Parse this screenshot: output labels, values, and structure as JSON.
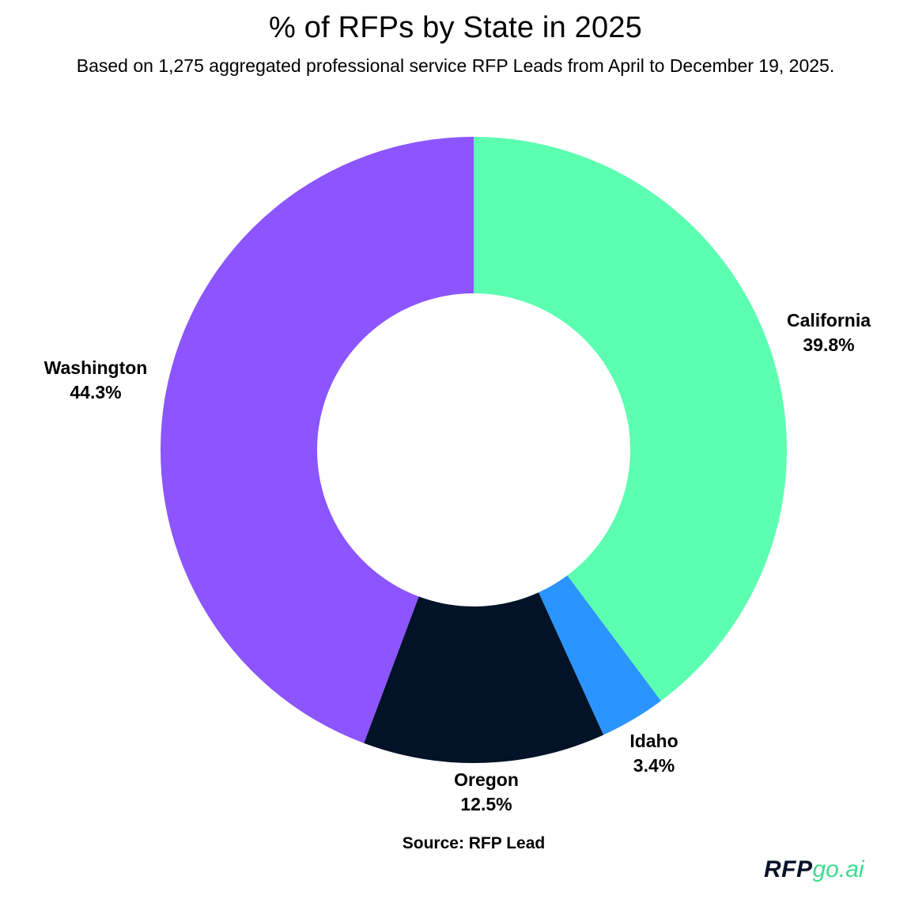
{
  "header": {
    "title": "% of RFPs by State in 2025",
    "subtitle": "Based on 1,275 aggregated professional service RFP Leads from April to December 19, 2025."
  },
  "footer": {
    "source": "Source: RFP Lead",
    "logo_primary": "RFP",
    "logo_secondary": "go.ai"
  },
  "chart_data": {
    "type": "pie",
    "style": "donut",
    "title": "% of RFPs by State in 2025",
    "subtitle": "Based on 1,275 aggregated professional service RFP Leads from April to December 19, 2025.",
    "source": "Source: RFP Lead",
    "legend": "none",
    "direction": "clockwise-from-top",
    "slices": [
      {
        "name": "California",
        "value": 39.8,
        "label": "39.8%",
        "color": "#5cffb0"
      },
      {
        "name": "Idaho",
        "value": 3.4,
        "label": "3.4%",
        "color": "#2a94ff"
      },
      {
        "name": "Oregon",
        "value": 12.5,
        "label": "12.5%",
        "color": "#021227"
      },
      {
        "name": "Washington",
        "value": 44.3,
        "label": "44.3%",
        "color": "#8c55ff"
      }
    ]
  }
}
